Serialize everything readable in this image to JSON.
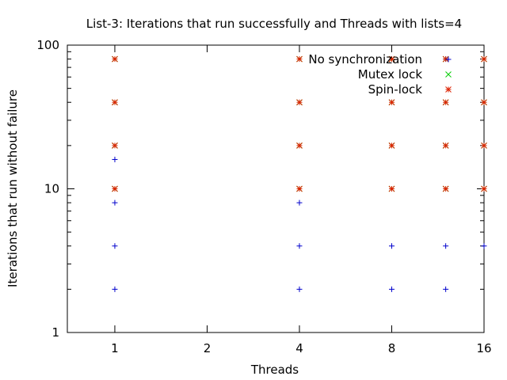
{
  "chart_data": {
    "type": "scatter",
    "title": "List-3: Iterations that run successfully and Threads with lists=4",
    "xlabel": "Threads",
    "ylabel": "Iterations that run without failure",
    "xscale": "log",
    "yscale": "log",
    "xlim": [
      0.7,
      16
    ],
    "ylim": [
      1,
      100
    ],
    "xticks": [
      1,
      2,
      4,
      8,
      16
    ],
    "yticks": [
      1,
      10,
      100
    ],
    "grid": false,
    "legend_position": "top-right",
    "series": [
      {
        "name": "No synchronization",
        "color": "#0000cc",
        "marker": "plus",
        "points": [
          [
            1,
            2
          ],
          [
            1,
            4
          ],
          [
            1,
            8
          ],
          [
            1,
            16
          ],
          [
            4,
            2
          ],
          [
            4,
            4
          ],
          [
            4,
            8
          ],
          [
            8,
            2
          ],
          [
            8,
            4
          ],
          [
            12,
            2
          ],
          [
            12,
            4
          ],
          [
            12,
            80
          ],
          [
            16,
            4
          ]
        ]
      },
      {
        "name": "Mutex lock",
        "color": "#00cc00",
        "marker": "cross",
        "points": [
          [
            1,
            10
          ],
          [
            1,
            20
          ],
          [
            1,
            40
          ],
          [
            1,
            80
          ],
          [
            4,
            10
          ],
          [
            4,
            20
          ],
          [
            4,
            40
          ],
          [
            4,
            80
          ],
          [
            8,
            10
          ],
          [
            8,
            20
          ],
          [
            8,
            40
          ],
          [
            8,
            80
          ],
          [
            12,
            10
          ],
          [
            12,
            20
          ],
          [
            12,
            40
          ],
          [
            12,
            80
          ],
          [
            16,
            10
          ],
          [
            16,
            20
          ],
          [
            16,
            40
          ],
          [
            16,
            80
          ]
        ]
      },
      {
        "name": "Spin-lock",
        "color": "#dd2200",
        "marker": "star",
        "points": [
          [
            1,
            10
          ],
          [
            1,
            20
          ],
          [
            1,
            40
          ],
          [
            1,
            80
          ],
          [
            4,
            10
          ],
          [
            4,
            20
          ],
          [
            4,
            40
          ],
          [
            4,
            80
          ],
          [
            8,
            10
          ],
          [
            8,
            20
          ],
          [
            8,
            40
          ],
          [
            8,
            80
          ],
          [
            12,
            10
          ],
          [
            12,
            20
          ],
          [
            12,
            40
          ],
          [
            12,
            80
          ],
          [
            16,
            10
          ],
          [
            16,
            20
          ],
          [
            16,
            40
          ],
          [
            16,
            80
          ]
        ]
      }
    ]
  }
}
